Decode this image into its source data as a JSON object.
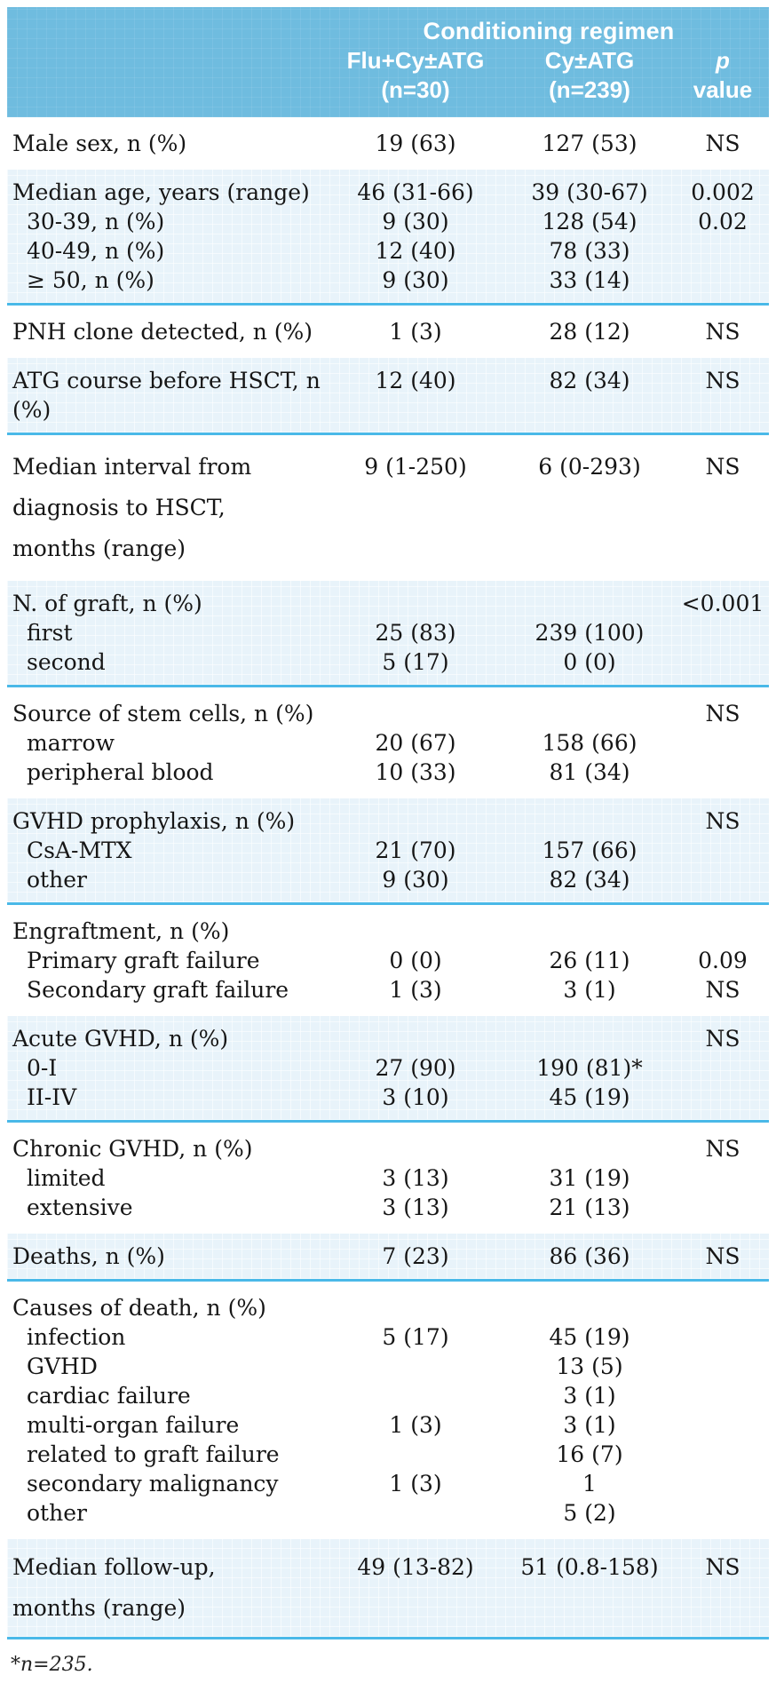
{
  "colors": {
    "header_background": "#6fbcdf",
    "shaded_band_background": "#e8f3fa",
    "rule_line": "#4ab9e8",
    "body_text": "#161616",
    "header_text": "#ffffff"
  },
  "table": {
    "header": {
      "group_title": "Conditioning regimen",
      "columns": [
        {
          "line1": "Flu+Cy±ATG",
          "line2": "(n=30)"
        },
        {
          "line1": "Cy±ATG",
          "line2": "(n=239)"
        },
        {
          "line1": "p",
          "line2": "value"
        }
      ]
    },
    "sections": [
      {
        "shaded": false,
        "rows": [
          {
            "label": "Male sex, n (%)",
            "c1": "19 (63)",
            "c2": "127 (53)",
            "p": "NS"
          }
        ]
      },
      {
        "shaded": true,
        "rows": [
          {
            "label": "Median age, years (range)",
            "c1": "46 (31-66)",
            "c2": "39 (30-67)",
            "p": "0.002"
          },
          {
            "label": "30-39, n (%)",
            "indent": true,
            "c1": "9 (30)",
            "c2": "128 (54)",
            "p": "0.02"
          },
          {
            "label": "40-49, n (%)",
            "indent": true,
            "c1": "12 (40)",
            "c2": "78 (33)",
            "p": ""
          },
          {
            "label": "≥ 50, n (%)",
            "indent": true,
            "c1": "9 (30)",
            "c2": "33 (14)",
            "p": ""
          }
        ]
      },
      {
        "shaded": false,
        "rows": [
          {
            "label": "PNH clone detected, n (%)",
            "c1": "1 (3)",
            "c2": "28 (12)",
            "p": "NS"
          }
        ]
      },
      {
        "shaded": true,
        "rows": [
          {
            "label": "ATG course before HSCT, n (%)",
            "c1": "12 (40)",
            "c2": "82 (34)",
            "p": "NS"
          }
        ]
      },
      {
        "shaded": false,
        "rows": [
          {
            "label": [
              "Median interval from",
              "diagnosis to HSCT,",
              "months (range)"
            ],
            "c1": "9 (1-250)",
            "c2": "6 (0-293)",
            "p": "NS"
          }
        ]
      },
      {
        "shaded": true,
        "rows": [
          {
            "label": "N. of graft, n (%)",
            "c1": "",
            "c2": "",
            "p": "<0.001"
          },
          {
            "label": "first",
            "indent": true,
            "c1": "25 (83)",
            "c2": "239 (100)",
            "p": ""
          },
          {
            "label": "second",
            "indent": true,
            "c1": "5 (17)",
            "c2": "0 (0)",
            "p": ""
          }
        ]
      },
      {
        "shaded": false,
        "rows": [
          {
            "label": "Source of stem cells, n (%)",
            "c1": "",
            "c2": "",
            "p": "NS"
          },
          {
            "label": "marrow",
            "indent": true,
            "c1": "20 (67)",
            "c2": "158 (66)",
            "p": ""
          },
          {
            "label": "peripheral blood",
            "indent": true,
            "c1": "10 (33)",
            "c2": "81 (34)",
            "p": ""
          }
        ]
      },
      {
        "shaded": true,
        "rows": [
          {
            "label": "GVHD prophylaxis, n (%)",
            "c1": "",
            "c2": "",
            "p": "NS"
          },
          {
            "label": "CsA-MTX",
            "indent": true,
            "c1": "21 (70)",
            "c2": "157 (66)",
            "p": ""
          },
          {
            "label": "other",
            "indent": true,
            "c1": "9 (30)",
            "c2": "82 (34)",
            "p": ""
          }
        ]
      },
      {
        "shaded": false,
        "rows": [
          {
            "label": "Engraftment, n (%)",
            "c1": "",
            "c2": "",
            "p": ""
          },
          {
            "label": "Primary graft failure",
            "indent": true,
            "c1": "0 (0)",
            "c2": "26 (11)",
            "p": "0.09"
          },
          {
            "label": "Secondary graft failure",
            "indent": true,
            "c1": "1 (3)",
            "c2": "3 (1)",
            "p": "NS"
          }
        ]
      },
      {
        "shaded": true,
        "rows": [
          {
            "label": "Acute GVHD, n (%)",
            "c1": "",
            "c2": "",
            "p": "NS"
          },
          {
            "label": "0-I",
            "indent": true,
            "c1": "27 (90)",
            "c2": "190 (81)*",
            "p": ""
          },
          {
            "label": "II-IV",
            "indent": true,
            "c1": "3 (10)",
            "c2": "45 (19)",
            "p": ""
          }
        ]
      },
      {
        "shaded": false,
        "rows": [
          {
            "label": "Chronic GVHD, n (%)",
            "c1": "",
            "c2": "",
            "p": "NS"
          },
          {
            "label": "limited",
            "indent": true,
            "c1": "3 (13)",
            "c2": "31 (19)",
            "p": ""
          },
          {
            "label": "extensive",
            "indent": true,
            "c1": "3 (13)",
            "c2": "21 (13)",
            "p": ""
          }
        ]
      },
      {
        "shaded": true,
        "rows": [
          {
            "label": "Deaths, n (%)",
            "c1": "7 (23)",
            "c2": "86 (36)",
            "p": "NS"
          }
        ]
      },
      {
        "shaded": false,
        "rows": [
          {
            "label": "Causes of death, n (%)",
            "c1": "",
            "c2": "",
            "p": ""
          },
          {
            "label": "infection",
            "indent": true,
            "c1": "5 (17)",
            "c2": "45 (19)",
            "p": ""
          },
          {
            "label": "GVHD",
            "indent": true,
            "c1": "",
            "c2": "13 (5)",
            "p": ""
          },
          {
            "label": "cardiac failure",
            "indent": true,
            "c1": "",
            "c2": "3 (1)",
            "p": ""
          },
          {
            "label": "multi-organ failure",
            "indent": true,
            "c1": "1 (3)",
            "c2": "3 (1)",
            "p": ""
          },
          {
            "label": "related to graft failure",
            "indent": true,
            "c1": "",
            "c2": "16 (7)",
            "p": ""
          },
          {
            "label": "secondary malignancy",
            "indent": true,
            "c1": "1 (3)",
            "c2": "1",
            "p": ""
          },
          {
            "label": "other",
            "indent": true,
            "c1": "",
            "c2": "5 (2)",
            "p": ""
          }
        ]
      },
      {
        "shaded": true,
        "rows": [
          {
            "label": [
              "Median follow-up,",
              "months (range)"
            ],
            "c1": "49 (13-82)",
            "c2": "51 (0.8-158)",
            "p": "NS"
          }
        ]
      }
    ],
    "footnote": "*n=235."
  }
}
